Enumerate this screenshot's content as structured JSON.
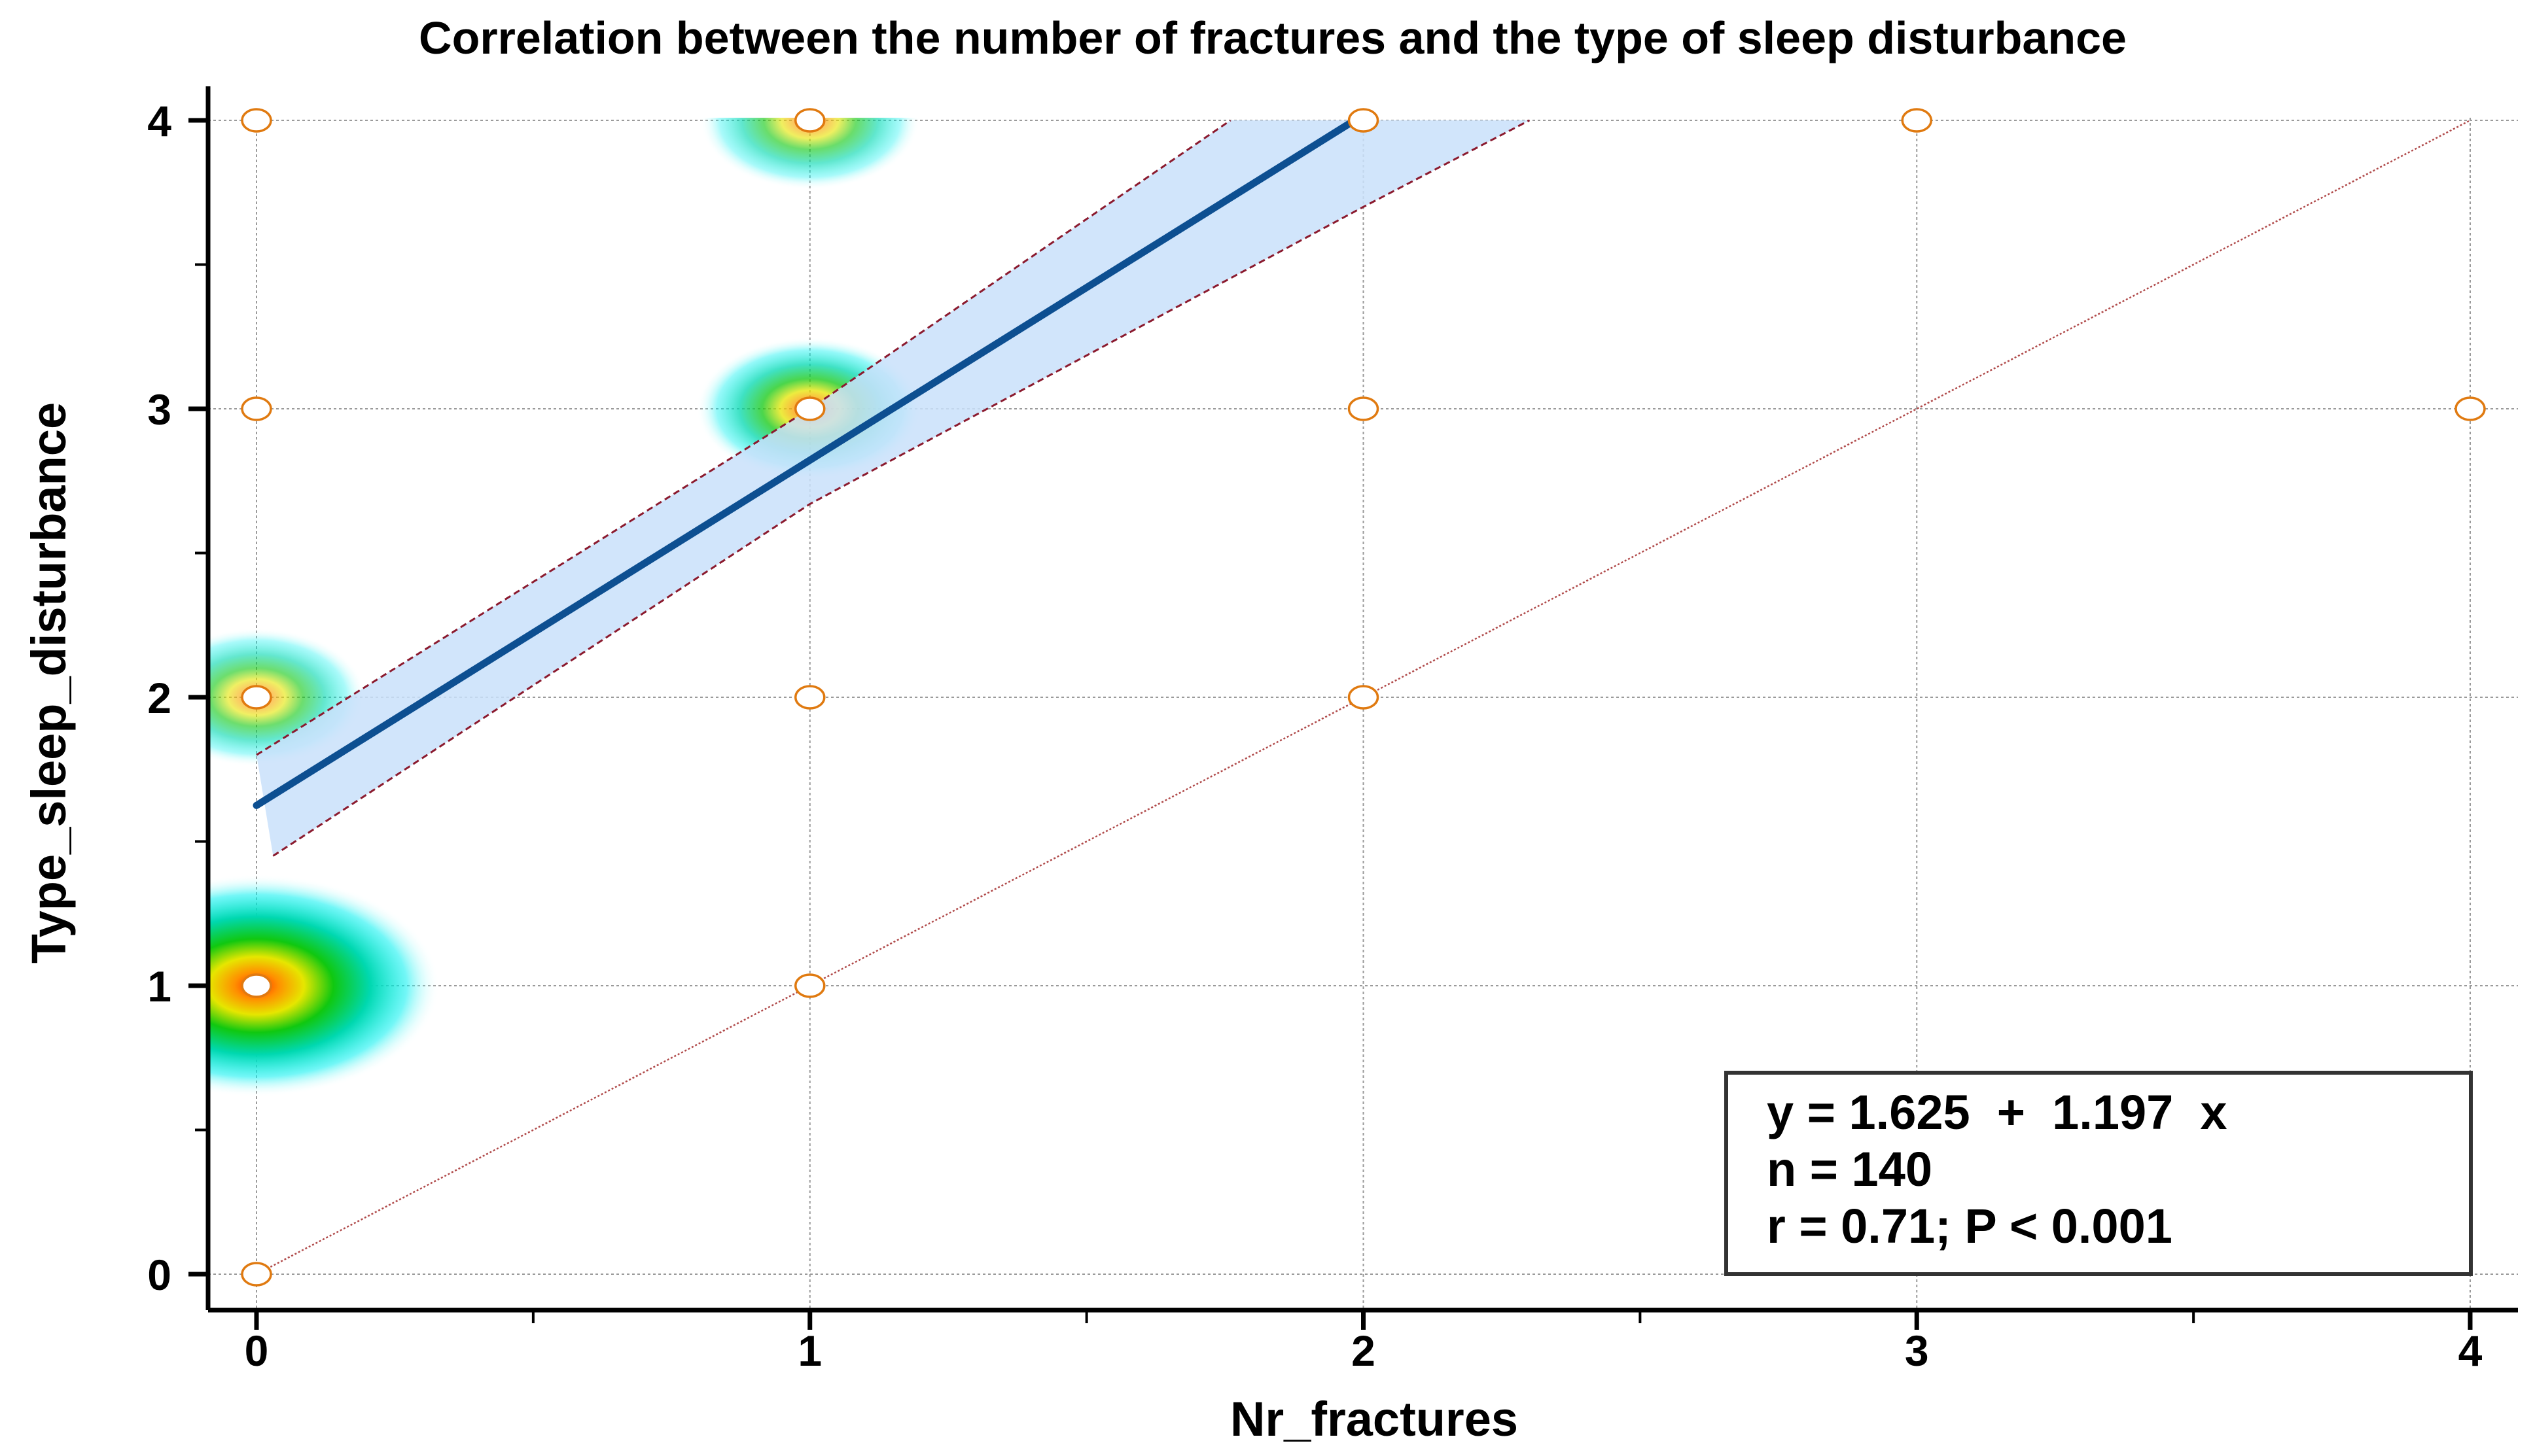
{
  "chart_data": {
    "type": "scatter",
    "title": "Correlation between the number of fractures and the type of sleep disturbance",
    "xlabel": "Nr_fractures",
    "ylabel": "Type_sleep_disturbance",
    "xlim": [
      0,
      4
    ],
    "ylim": [
      0,
      4
    ],
    "x_ticks": [
      "0",
      "1",
      "2",
      "3",
      "4"
    ],
    "y_ticks": [
      "0",
      "1",
      "2",
      "3",
      "4"
    ],
    "grid": true,
    "points": [
      {
        "x": 0,
        "y": 4
      },
      {
        "x": 1,
        "y": 4
      },
      {
        "x": 2,
        "y": 4
      },
      {
        "x": 3,
        "y": 4
      },
      {
        "x": 0,
        "y": 3
      },
      {
        "x": 1,
        "y": 3
      },
      {
        "x": 2,
        "y": 3
      },
      {
        "x": 4,
        "y": 3
      },
      {
        "x": 0,
        "y": 2
      },
      {
        "x": 1,
        "y": 2
      },
      {
        "x": 2,
        "y": 2
      },
      {
        "x": 0,
        "y": 1
      },
      {
        "x": 1,
        "y": 1
      },
      {
        "x": 0,
        "y": 0
      }
    ],
    "density_peaks": [
      {
        "x": 0,
        "y": 1,
        "intensity": 1.0
      },
      {
        "x": 1,
        "y": 3,
        "intensity": 0.62
      },
      {
        "x": 1,
        "y": 4,
        "intensity": 0.42
      },
      {
        "x": 0,
        "y": 2,
        "intensity": 0.4
      }
    ],
    "regression": {
      "intercept": 1.625,
      "slope": 1.197,
      "x_range": [
        0,
        1.98
      ]
    },
    "confidence_band": {
      "lower": [
        [
          0.03,
          1.45
        ],
        [
          1,
          2.67
        ],
        [
          2,
          3.7
        ],
        [
          2.3,
          4.0
        ]
      ],
      "upper": [
        [
          0,
          1.8
        ],
        [
          1,
          3.0
        ],
        [
          1.76,
          4.0
        ]
      ]
    },
    "identity_line": {
      "from": [
        0,
        0
      ],
      "to": [
        4,
        4
      ]
    },
    "annotation": {
      "line1": "y = 1.625  +  1.197  x",
      "line2": "n = 140",
      "line3": "r = 0.71; P < 0.001",
      "placement": "bottom-right"
    },
    "colors": {
      "regression_line": "#0d4f91",
      "band_fill": "#c9e1fa",
      "band_edge": "#8b1a2e",
      "identity_line": "#b04a4a",
      "point_edge": "#e07a10",
      "grid": "#9a9a9a"
    }
  }
}
